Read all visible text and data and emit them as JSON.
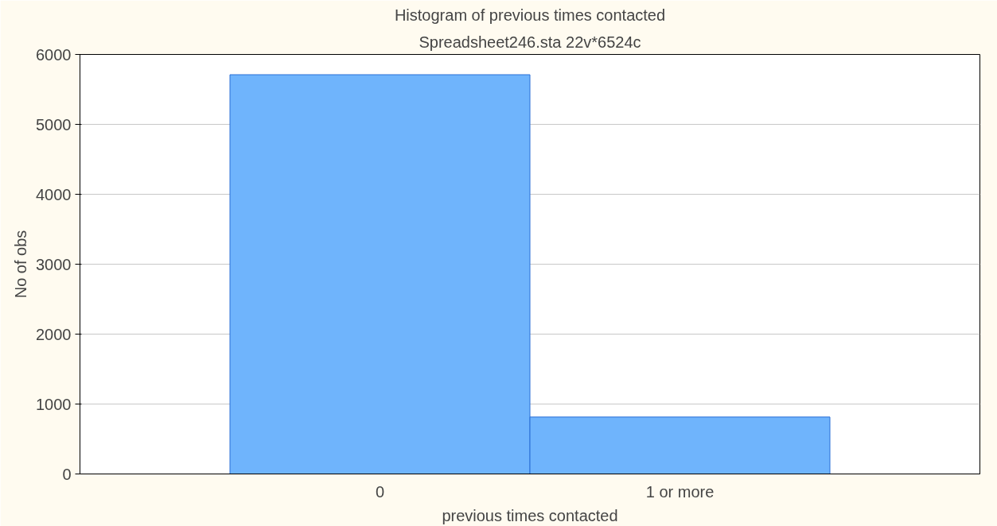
{
  "chart_data": {
    "type": "bar",
    "title": "Histogram of previous times contacted",
    "subtitle": "Spreadsheet246.sta 22v*6524c",
    "xlabel": "previous times contacted",
    "ylabel": "No of obs",
    "categories": [
      "0",
      "1 or more"
    ],
    "values": [
      5710,
      814
    ],
    "color": "#6fb4fc",
    "ylim": [
      0,
      6000
    ],
    "yticks": [
      0,
      1000,
      2000,
      3000,
      4000,
      5000,
      6000
    ],
    "grid": "y"
  }
}
